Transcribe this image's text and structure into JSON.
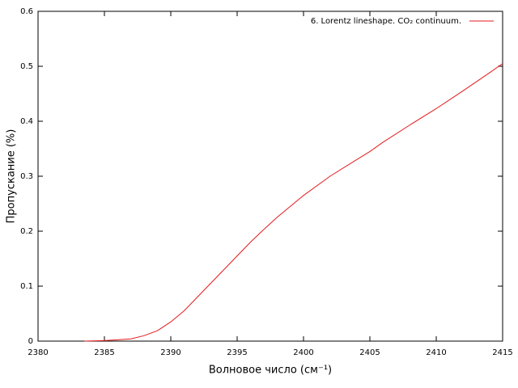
{
  "chart_data": {
    "type": "line",
    "x_label": "Волновое число (см⁻¹)",
    "y_label": "Пропускание (%)",
    "x": [
      2383.5,
      2385,
      2387,
      2388,
      2389,
      2390,
      2391,
      2392,
      2393,
      2394,
      2395,
      2396,
      2397,
      2398,
      2399,
      2400,
      2402,
      2404,
      2405,
      2406,
      2408,
      2410,
      2412,
      2414,
      2415
    ],
    "series": [
      {
        "name": "6. Lorentz lineshape. CO₂ continuum.",
        "color": "#e41a1c",
        "values": [
          0,
          0.001,
          0.004,
          0.01,
          0.019,
          0.035,
          0.055,
          0.08,
          0.105,
          0.13,
          0.155,
          0.18,
          0.203,
          0.225,
          0.245,
          0.265,
          0.3,
          0.33,
          0.345,
          0.362,
          0.393,
          0.423,
          0.455,
          0.488,
          0.505
        ]
      }
    ],
    "xlim": [
      2380,
      2415
    ],
    "xticks": [
      2380,
      2385,
      2390,
      2395,
      2400,
      2405,
      2410,
      2415
    ],
    "ylim": [
      0,
      0.6
    ],
    "yticks": [
      0,
      0.1,
      0.2,
      0.3,
      0.4,
      0.5,
      0.6
    ],
    "grid": false,
    "legend": "top-right"
  }
}
